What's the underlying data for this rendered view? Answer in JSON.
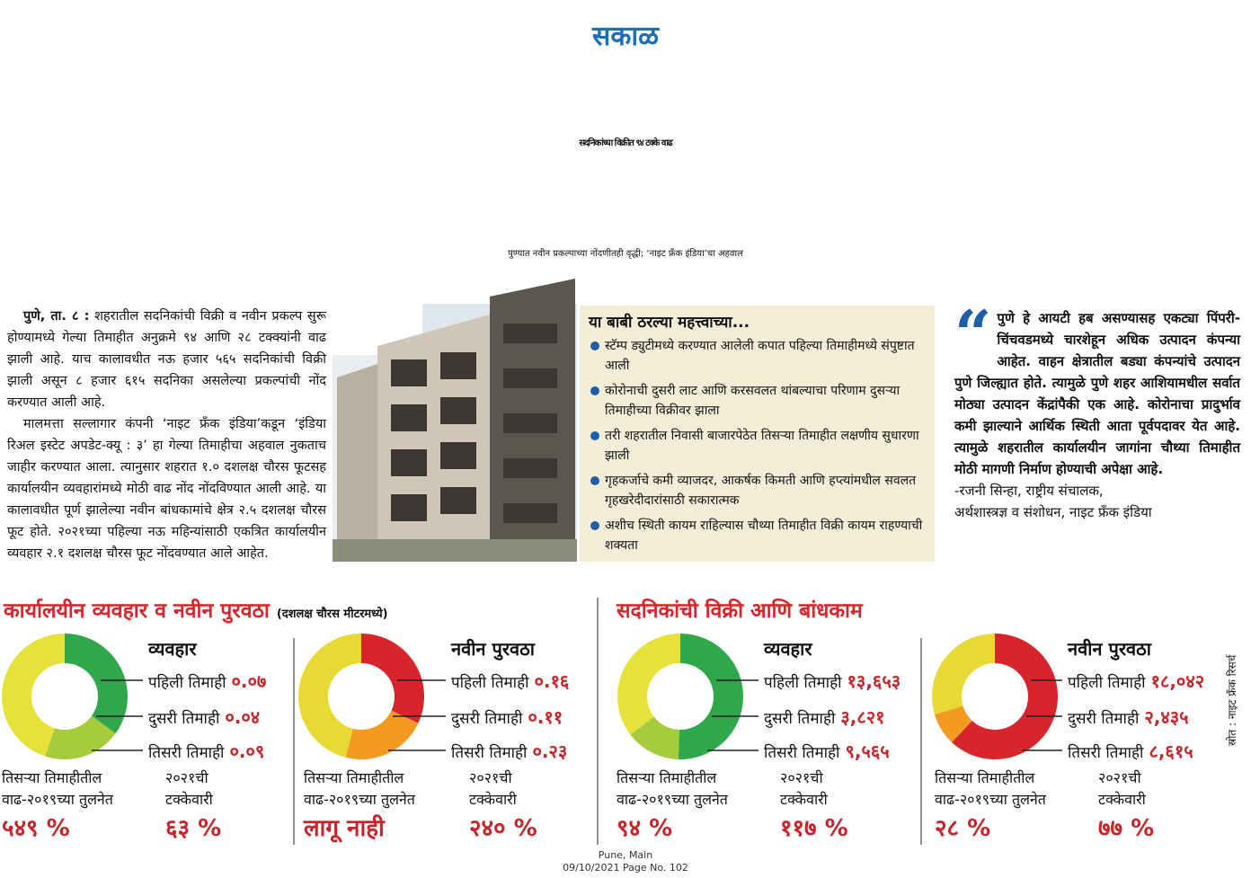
{
  "masthead": "सकाळ",
  "headline": "सदनिकांच्या विक्रीत ९४ टक्के वाढ",
  "subheadline": "पुण्यात नवीन प्रकल्पाच्या नोंदणीतही वृद्धी; ‘नाइट फ्रँक इंडिया’चा अहवाल",
  "article": {
    "dateline": "पुणे, ता. ८ :",
    "paragraphs": [
      "शहरातील सदनिकांची विक्री व नवीन प्रकल्प सुरू होण्यामध्ये गेल्या तिमाहीत अनुक्रमे ९४ आणि २८ टक्क्यांनी वाढ झाली आहे. याच कालावधीत नऊ हजार ५६५ सदनिकांची विक्री झाली असून ८ हजार ६१५ सदनिका असलेल्या प्रकल्पांची नोंद करण्यात आली आहे.",
      "मालमत्ता सल्लागार कंपनी ‘नाइट फ्रँक इंडिया’कडून ‘इंडिया रिअल इस्टेट अपडेट-क्यू : ३’ हा गेल्या तिमाहीचा अहवाल नुकताच जाहीर करण्यात आला. त्यानुसार शहरात १.० दशलक्ष चौरस फूटसह कार्यालयीन व्यवहारांमध्ये मोठी वाढ नोंद नोंदविण्यात आली आहे. या कालावधीत पूर्ण झालेल्या नवीन बांधकामांचे क्षेत्र २.५ दशलक्ष चौरस फूट होते. २०२१च्या पहिल्या नऊ महिन्यांसाठी एकत्रित कार्यालयीन व्यवहार २.१ दशलक्ष चौरस फूट नोंदवण्यात आले आहेत."
    ]
  },
  "highlights": {
    "title": "या बाबी ठरल्या महत्त्वाच्या...",
    "items": [
      "स्टॅम्प ड्युटीमध्ये करण्यात आलेली कपात पहिल्या तिमाहीमध्ये संपुष्टात आली",
      "कोरोनाची दुसरी लाट आणि करसवलत थांबल्याचा परिणाम दुसऱ्या तिमाहीच्या विक्रीवर झाला",
      "तरी शहरातील निवासी बाजारपेठेत तिसऱ्या तिमाहीत लक्षणीय सुधारणा झाली",
      "गृहकर्जाचे कमी व्याजदर, आकर्षक किमती आणि हप्त्यांमधील सवलत गृहखरेदीदारांसाठी सकारात्मक",
      "अशीच स्थिती कायम राहिल्यास चौथ्या तिमाहीत विक्री कायम राहण्याची शक्यता"
    ]
  },
  "quote": {
    "text": "पुणे हे आयटी हब असण्यासह एकट्या पिंपरी-चिंचवडमध्ये चारशेहून अधिक उत्पादन कंपन्या आहेत. वाहन क्षेत्रातील बड्या कंपन्यांचे उत्पादन पुणे जिल्ह्यात होते. त्यामुळे पुणे शहर आशियामधील सर्वात मोठ्या उत्पादन केंद्रांपैकी एक आहे. कोरोनाचा प्रादुर्भाव कमी झाल्याने आर्थिक स्थिती आता पूर्वपदावर येत आहे. त्यामुळे शहरातील कार्यालयीन जागांना चौथ्या तिमाहीत मोठी मागणी निर्माण होण्याची अपेक्षा आहे.",
    "attribution": [
      "-रजनी सिन्हा, राष्ट्रीय संचालक,",
      "अर्थशास्त्रज्ञ व संशोधन, नाइट फ्रँक इंडिया"
    ]
  },
  "sections": [
    {
      "title": "कार्यालयीन व्यवहार व नवीन पुरवठा",
      "unit": "(दशलक्ष चौरस मीटरमध्ये)"
    },
    {
      "title": "सदनिकांची विक्री आणि बांधकाम"
    }
  ],
  "chart_data": [
    {
      "type": "donut",
      "title": "व्यवहार",
      "categories": [
        "पहिली तिमाही",
        "दुसरी तिमाही",
        "तिसरी तिमाही"
      ],
      "values": [
        0.07,
        0.04,
        0.09
      ],
      "value_labels": [
        "०.०७",
        "०.०४",
        "०.०९"
      ],
      "colors": [
        "#2ea84a",
        "#a6cc3c",
        "#e6e23a"
      ]
    },
    {
      "type": "donut",
      "title": "नवीन पुरवठा",
      "categories": [
        "पहिली तिमाही",
        "दुसरी तिमाही",
        "तिसरी तिमाही"
      ],
      "values": [
        0.16,
        0.11,
        0.23
      ],
      "value_labels": [
        "०.१६",
        "०.११",
        "०.२३"
      ],
      "colors": [
        "#d7262b",
        "#f39a22",
        "#e8d935"
      ]
    },
    {
      "type": "donut",
      "title": "व्यवहार",
      "categories": [
        "पहिली तिमाही",
        "दुसरी तिमाही",
        "तिसरी तिमाही"
      ],
      "values": [
        13653,
        3821,
        9565
      ],
      "value_labels": [
        "१३,६५३",
        "३,८२१",
        "९,५६५"
      ],
      "colors": [
        "#2ea84a",
        "#a6cc3c",
        "#e6e23a"
      ]
    },
    {
      "type": "donut",
      "title": "नवीन पुरवठा",
      "categories": [
        "पहिली तिमाही",
        "दुसरी तिमाही",
        "तिसरी तिमाही"
      ],
      "values": [
        18042,
        2435,
        8615
      ],
      "value_labels": [
        "१८,०४२",
        "२,४३५",
        "८,६१५"
      ],
      "colors": [
        "#d7262b",
        "#f39a22",
        "#e8d935"
      ]
    }
  ],
  "summaries": [
    [
      {
        "label": [
          "तिसऱ्या तिमाहीतील",
          "वाढ-२०१९च्या तुलनेत"
        ],
        "value": "५४९ %"
      },
      {
        "label": [
          "२०२१ची",
          "टक्केवारी"
        ],
        "value": "६३ %"
      }
    ],
    [
      {
        "label": [
          "तिसऱ्या तिमाहीतील",
          "वाढ-२०१९च्या तुलनेत"
        ],
        "value": "लागू नाही"
      },
      {
        "label": [
          "२०२१ची",
          "टक्केवारी"
        ],
        "value": "२४० %"
      }
    ],
    [
      {
        "label": [
          "तिसऱ्या तिमाहीतील",
          "वाढ-२०१९च्या तुलनेत"
        ],
        "value": "९४ %"
      },
      {
        "label": [
          "२०२१ची",
          "टक्केवारी"
        ],
        "value": "११७ %"
      }
    ],
    [
      {
        "label": [
          "तिसऱ्या तिमाहीतील",
          "वाढ-२०१९च्या तुलनेत"
        ],
        "value": "२८ %"
      },
      {
        "label": [
          "२०२१ची",
          "टक्केवारी"
        ],
        "value": "७७ %"
      }
    ]
  ],
  "source": "स्रोत : नाइट फ्रँक रिसर्च",
  "footer": [
    "Pune, Main",
    "09/10/2021  Page No. 102"
  ]
}
